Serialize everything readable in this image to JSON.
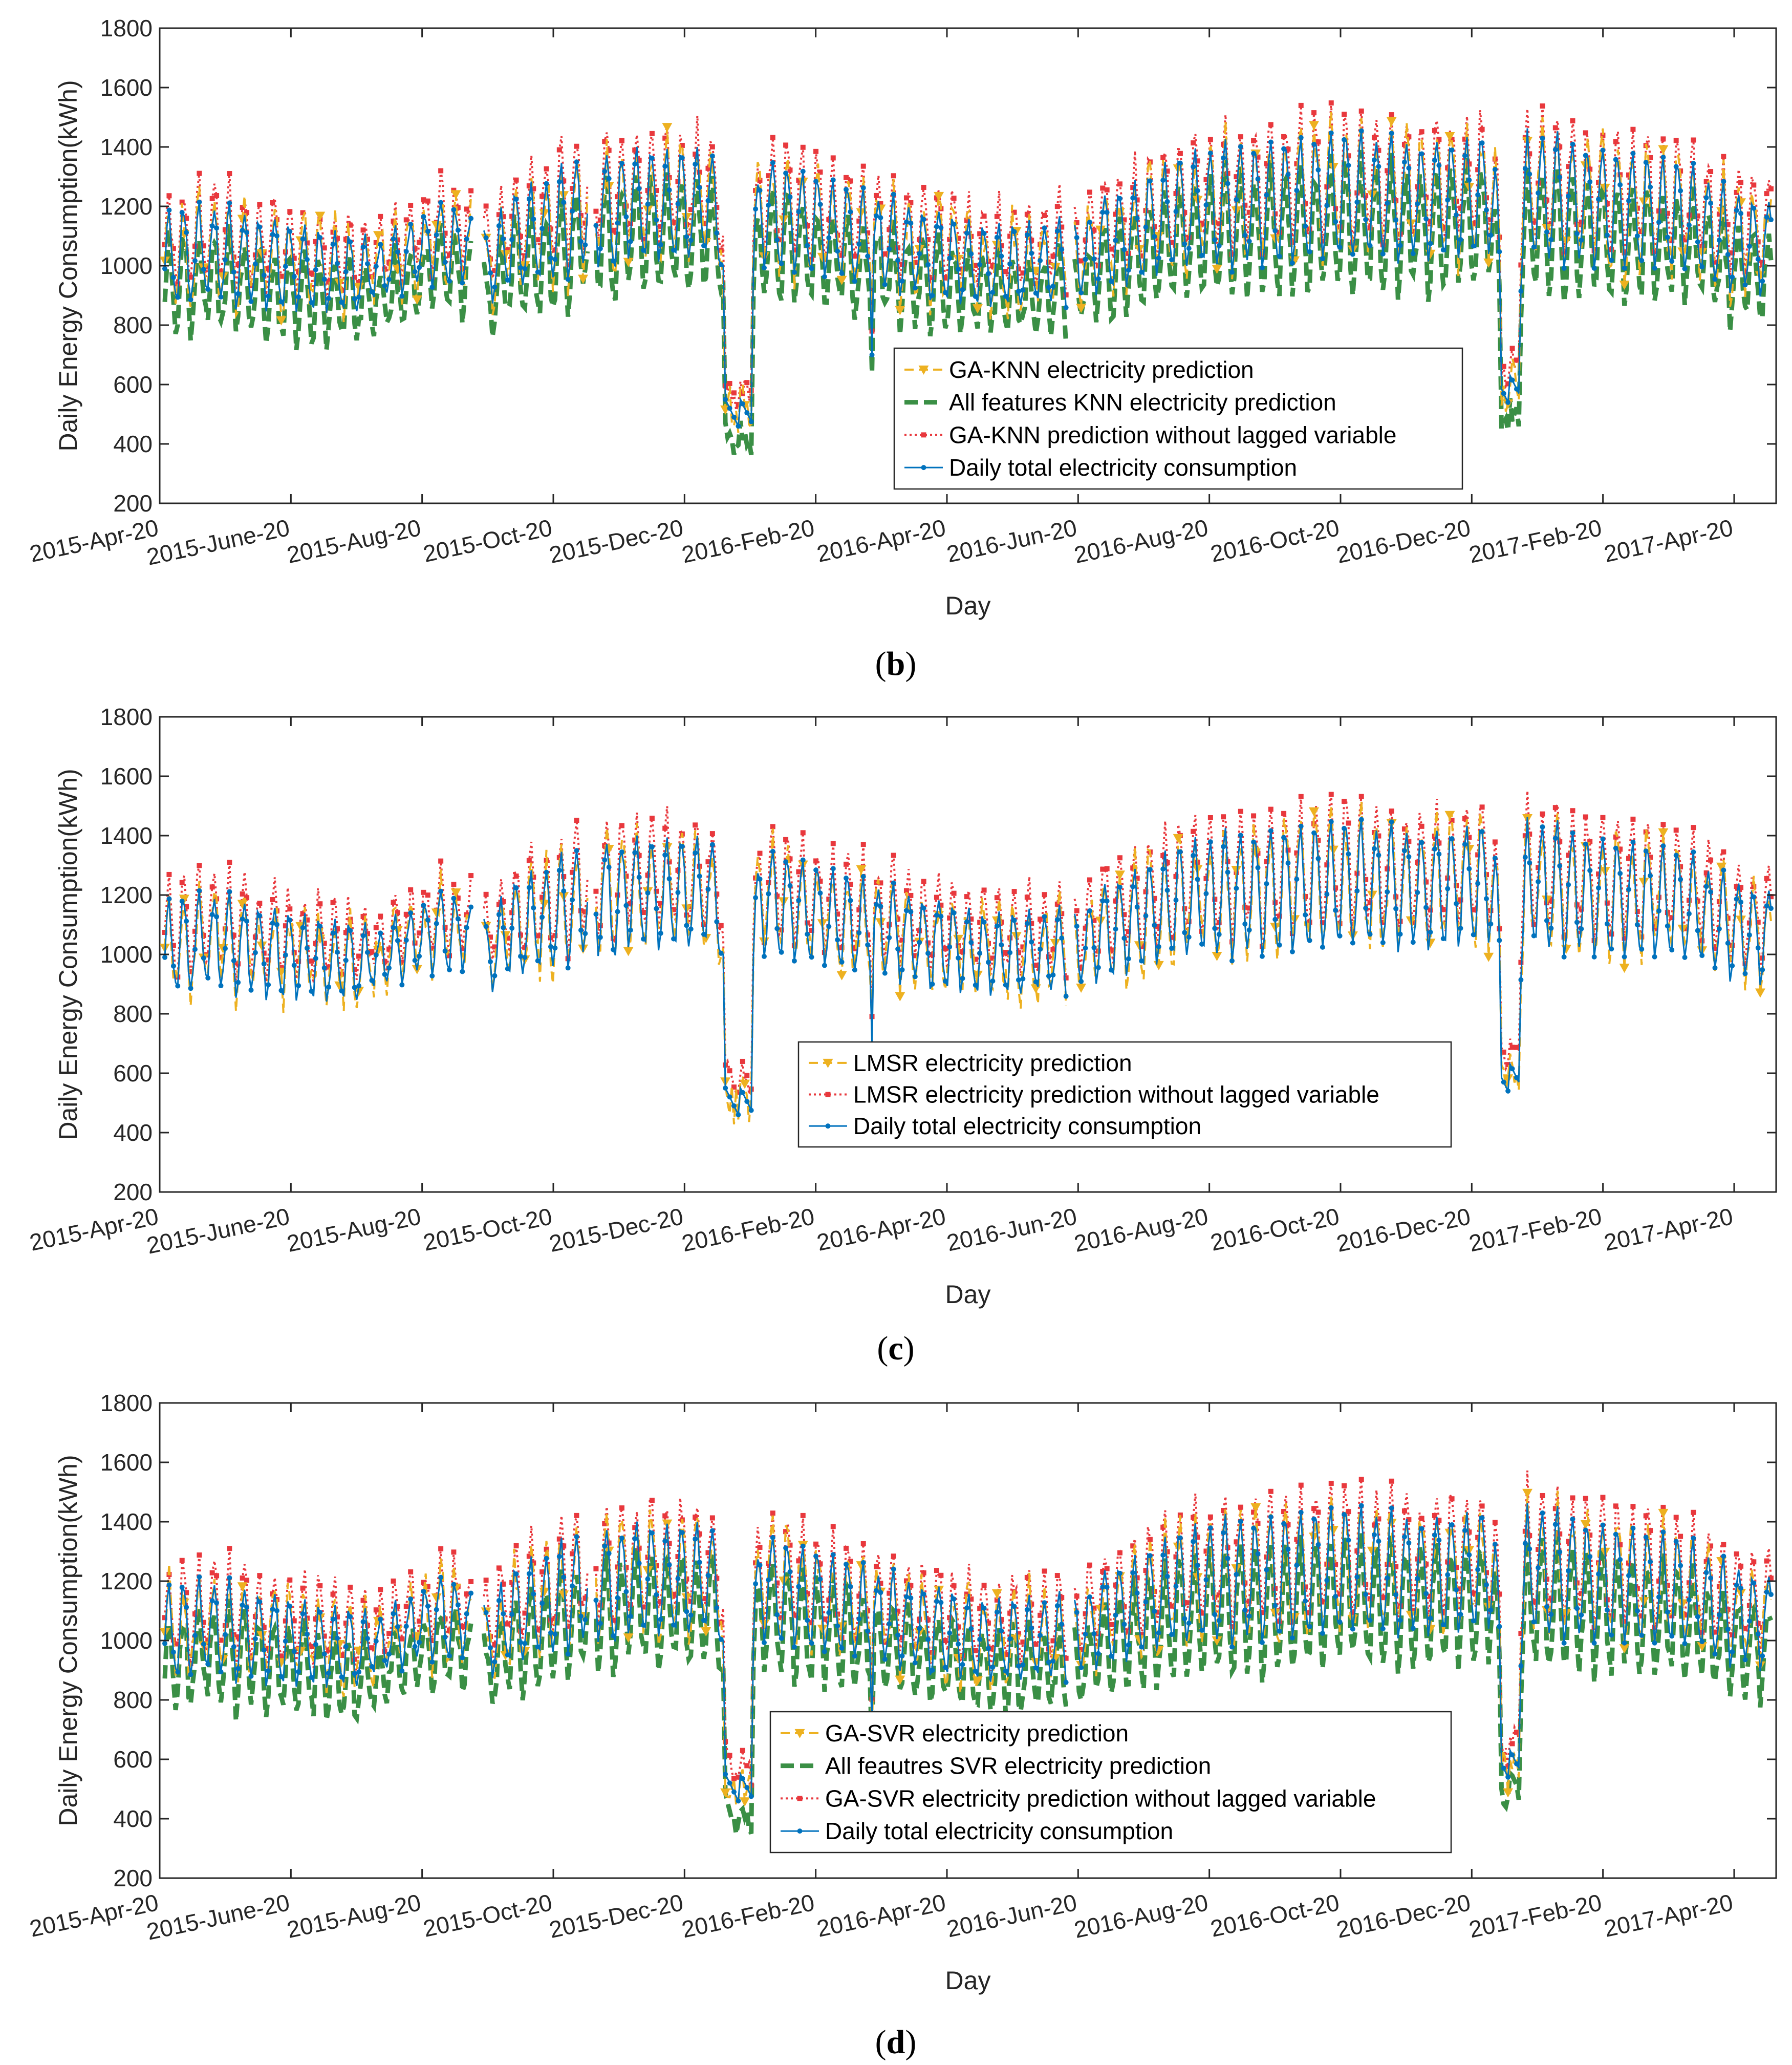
{
  "colors": {
    "gold": "#EDB120",
    "green": "#3A8F45",
    "red": "#E8383D",
    "blue": "#0072BD",
    "axis": "#262626"
  },
  "chart_data": [
    {
      "type": "line",
      "caption": "b",
      "xlabel": "Day",
      "ylabel": "Daily Energy Consumption(kWh)",
      "ylim": [
        200,
        1800
      ],
      "yticks": [
        "200",
        "400",
        "600",
        "800",
        "1000",
        "1200",
        "1400",
        "1600",
        "1800"
      ],
      "xticks": [
        "2015-Apr-20",
        "2015-June-20",
        "2015-Aug-20",
        "2015-Oct-20",
        "2015-Dec-20",
        "2016-Feb-20",
        "2016-Apr-20",
        "2016-Jun-20",
        "2016-Aug-20",
        "2016-Oct-20",
        "2016-Dec-20",
        "2017-Feb-20",
        "2017-Apr-20"
      ],
      "series": [
        {
          "name": "GA-KNN electricity prediction",
          "key": "gold",
          "style": "dashed",
          "marker": "triangle"
        },
        {
          "name": "All features KNN electricity prediction",
          "key": "green",
          "style": "thickdash",
          "marker": "none"
        },
        {
          "name": "GA-KNN prediction without lagged variable",
          "key": "red",
          "style": "dotted",
          "marker": "square"
        },
        {
          "name": "Daily total electricity consumption",
          "key": "blue",
          "style": "solid",
          "marker": "dot"
        }
      ]
    },
    {
      "type": "line",
      "caption": "c",
      "xlabel": "Day",
      "ylabel": "Daily Energy Consumption(kWh)",
      "ylim": [
        200,
        1800
      ],
      "yticks": [
        "200",
        "400",
        "600",
        "800",
        "1000",
        "1200",
        "1400",
        "1600",
        "1800"
      ],
      "xticks": [
        "2015-Apr-20",
        "2015-June-20",
        "2015-Aug-20",
        "2015-Oct-20",
        "2015-Dec-20",
        "2016-Feb-20",
        "2016-Apr-20",
        "2016-Jun-20",
        "2016-Aug-20",
        "2016-Oct-20",
        "2016-Dec-20",
        "2017-Feb-20",
        "2017-Apr-20"
      ],
      "series": [
        {
          "name": "LMSR electricity prediction",
          "key": "gold",
          "style": "dashed",
          "marker": "triangle"
        },
        {
          "name": "LMSR electricity prediction without lagged variable",
          "key": "red",
          "style": "dotted",
          "marker": "square"
        },
        {
          "name": "Daily total electricity consumption",
          "key": "blue",
          "style": "solid",
          "marker": "dot"
        }
      ]
    },
    {
      "type": "line",
      "caption": "d",
      "xlabel": "Day",
      "ylabel": "Daily Energy Consumption(kWh)",
      "ylim": [
        200,
        1800
      ],
      "yticks": [
        "200",
        "400",
        "600",
        "800",
        "1000",
        "1200",
        "1400",
        "1600",
        "1800"
      ],
      "xticks": [
        "2015-Apr-20",
        "2015-June-20",
        "2015-Aug-20",
        "2015-Oct-20",
        "2015-Dec-20",
        "2016-Feb-20",
        "2016-Apr-20",
        "2016-Jun-20",
        "2016-Aug-20",
        "2016-Oct-20",
        "2016-Dec-20",
        "2017-Feb-20",
        "2017-Apr-20"
      ],
      "series": [
        {
          "name": "GA-SVR electricity prediction",
          "key": "gold",
          "style": "dashed",
          "marker": "triangle"
        },
        {
          "name": "All feautres SVR electricity prediction",
          "key": "green",
          "style": "thickdash",
          "marker": "none"
        },
        {
          "name": "GA-SVR electricity prediction without lagged variable",
          "key": "red",
          "style": "dotted",
          "marker": "square"
        },
        {
          "name": "Daily total electricity consumption",
          "key": "blue",
          "style": "solid",
          "marker": "dot"
        }
      ]
    }
  ],
  "consumption_profile": {
    "x_range_days": [
      0,
      745
    ],
    "knots_day": [
      0,
      20,
      40,
      60,
      75,
      90,
      100,
      112,
      125,
      132,
      140,
      150,
      160,
      178,
      190,
      200,
      205,
      210,
      213,
      230,
      260,
      280,
      300,
      320,
      345,
      365,
      380,
      395,
      415,
      425,
      428,
      431,
      445,
      455,
      470,
      490,
      520,
      550,
      580,
      600,
      620,
      640,
      665,
      690,
      708,
      722,
      745
    ],
    "knots_base": [
      1020,
      1050,
      1020,
      1000,
      980,
      970,
      990,
      1030,
      1080,
      1080,
      1060,
      990,
      1080,
      1120,
      1170,
      1200,
      1200,
      1150,
      1220,
      1200,
      1210,
      1180,
      1140,
      1100,
      1060,
      1030,
      1000,
      1000,
      1010,
      1020,
      1040,
      1070,
      1100,
      1130,
      1180,
      1200,
      1220,
      1240,
      1220,
      1230,
      1250,
      1230,
      1200,
      1180,
      1160,
      1100,
      1060
    ],
    "knots_amplitude": [
      150,
      150,
      150,
      140,
      130,
      120,
      90,
      100,
      130,
      130,
      100,
      120,
      150,
      170,
      180,
      190,
      170,
      170,
      180,
      180,
      170,
      170,
      160,
      150,
      140,
      140,
      130,
      130,
      130,
      120,
      120,
      150,
      160,
      170,
      180,
      200,
      200,
      200,
      190,
      190,
      200,
      210,
      190,
      180,
      170,
      160,
      150
    ],
    "holiday_dips": [
      {
        "start": 257,
        "end": 275,
        "min": 460
      },
      {
        "start": 617,
        "end": 631,
        "min": 540
      }
    ],
    "single_dips": [
      {
        "day": 328,
        "value": 700
      },
      {
        "day": 356,
        "value": 900
      }
    ]
  }
}
